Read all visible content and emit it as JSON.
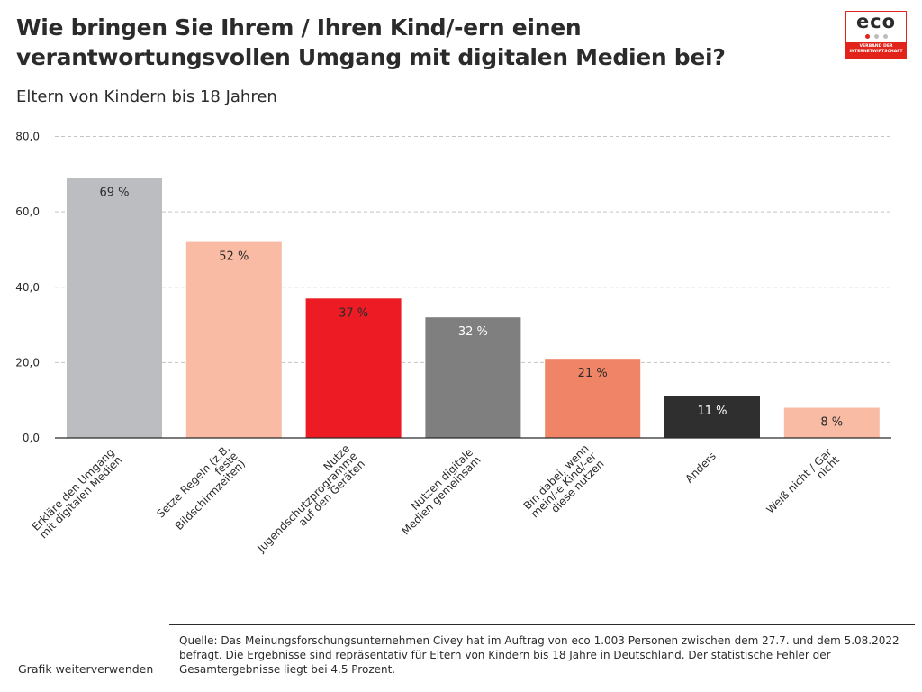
{
  "header": {
    "title": "Wie bringen Sie Ihrem / Ihren Kind/-ern einen verantwortungsvollen Umgang mit digitalen Medien bei?",
    "subtitle": "Eltern von Kindern bis 18 Jahren"
  },
  "logo": {
    "wordmark": "eco",
    "tagline_line1": "VERBAND DER",
    "tagline_line2": "INTERNETWIRTSCHAFT",
    "colors": {
      "red": "#e2231a",
      "dot1": "#e2231a",
      "dot2": "#bdbdbd",
      "dot3": "#bdbdbd"
    }
  },
  "chart_data": {
    "type": "bar",
    "title": "Wie bringen Sie Ihrem / Ihren Kind/-ern einen verantwortungsvollen Umgang mit digitalen Medien bei?",
    "subtitle": "Eltern von Kindern bis 18 Jahren",
    "xlabel": "",
    "ylabel": "",
    "ylim": [
      0,
      80
    ],
    "yticks": [
      "0,0",
      "20,0",
      "40,0",
      "60,0",
      "80,0"
    ],
    "ytick_values": [
      0,
      20,
      40,
      60,
      80
    ],
    "grid": true,
    "legend": "none",
    "categories": [
      [
        "Erkläre den Umgang",
        "mit digitalen Medien"
      ],
      [
        "Setze Regeln (z.B.",
        "feste",
        "Bildschirmzeiten)"
      ],
      [
        "Nutze",
        "Jugendschutzprogramme",
        "auf den Geräten"
      ],
      [
        "Nutzen digitale",
        "Medien gemeinsam"
      ],
      [
        "Bin dabei, wenn",
        "mein/-e Kind/-er",
        "diese nutzen"
      ],
      [
        "Anders"
      ],
      [
        "Weiß nicht / Gar",
        "nicht"
      ]
    ],
    "values": [
      69,
      52,
      37,
      32,
      21,
      11,
      8
    ],
    "data_labels": [
      "69 %",
      "52 %",
      "37 %",
      "32 %",
      "21 %",
      "11 %",
      "8 %"
    ],
    "bar_colors": [
      "#bcbdc0",
      "#f9bba4",
      "#ed1c24",
      "#7f7f7f",
      "#f08466",
      "#2f2f2f",
      "#f9bba4"
    ],
    "label_colors": [
      "#2b2b2b",
      "#2b2b2b",
      "#2b2b2b",
      "#ffffff",
      "#2b2b2b",
      "#ffffff",
      "#2b2b2b"
    ]
  },
  "footer": {
    "source": "Quelle: Das Meinungsforschungsunternehmen Civey hat im Auftrag von eco 1.003 Personen zwischen dem 27.7. und dem 5.08.2022 befragt. Die Ergebnisse sind repräsentativ für Eltern von Kindern bis 18 Jahre in Deutschland. Der statistische Fehler der Gesamtergebnisse liegt bei 4.5 Prozent.",
    "reuse_link": "Grafik weiterverwenden"
  }
}
